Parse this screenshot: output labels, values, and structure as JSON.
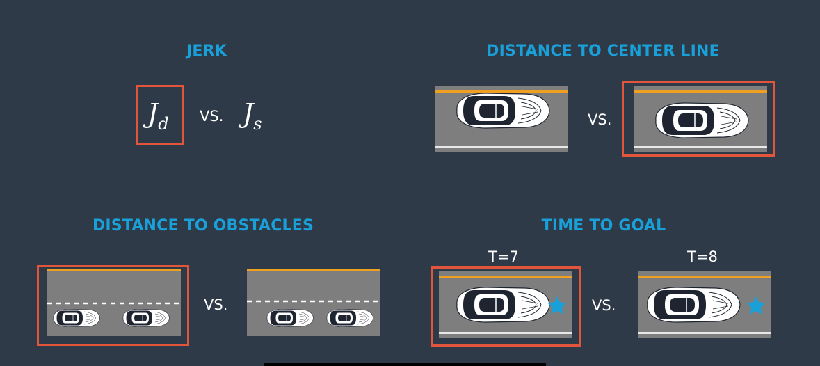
{
  "titles": {
    "jerk": "JERK",
    "center": "DISTANCE TO CENTER LINE",
    "obstacles": "DISTANCE TO OBSTACLES",
    "goal": "TIME TO GOAL"
  },
  "jerk": {
    "left": {
      "symbol": "J",
      "sub": "d"
    },
    "vs": "VS.",
    "right": {
      "symbol": "J",
      "sub": "s"
    },
    "highlighted": "left"
  },
  "center_line": {
    "vs": "VS.",
    "highlighted": "right"
  },
  "obstacles": {
    "vs": "VS.",
    "highlighted": "left"
  },
  "goal": {
    "left_label": "T=7",
    "right_label": "T=8",
    "vs": "VS.",
    "highlighted": "left",
    "goal_icon": "star-icon"
  },
  "colors": {
    "background": "#2e3a48",
    "title": "#1aa0d8",
    "highlight": "#e2553a",
    "road": "#7e7e7e",
    "road_edge_top": "#f0a020",
    "star": "#1aa0d8"
  }
}
